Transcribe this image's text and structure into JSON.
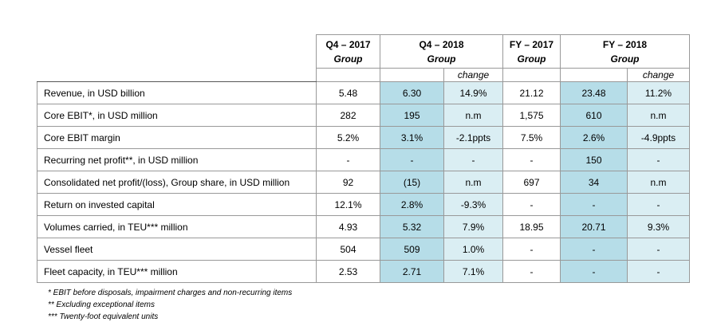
{
  "table": {
    "header": {
      "groups": [
        {
          "period": "Q4 – 2017",
          "sub": "Group",
          "span": 1
        },
        {
          "period": "Q4 – 2018",
          "sub": "Group",
          "span": 2,
          "change": "change"
        },
        {
          "period": "FY – 2017",
          "sub": "Group",
          "span": 1
        },
        {
          "period": "FY – 2018",
          "sub": "Group",
          "span": 2,
          "change": "change"
        }
      ]
    },
    "rows": [
      {
        "label": "Revenue, in USD billion",
        "cells": [
          "5.48",
          "6.30",
          "14.9%",
          "21.12",
          "23.48",
          "11.2%"
        ]
      },
      {
        "label": "Core EBIT*, in USD million",
        "cells": [
          "282",
          "195",
          "n.m",
          "1,575",
          "610",
          "n.m"
        ]
      },
      {
        "label": "Core EBIT margin",
        "cells": [
          "5.2%",
          "3.1%",
          "-2.1ppts",
          "7.5%",
          "2.6%",
          "-4.9ppts"
        ]
      },
      {
        "label": "Recurring net profit**, in USD million",
        "cells": [
          "-",
          "-",
          "-",
          "-",
          "150",
          "-"
        ]
      },
      {
        "label": "Consolidated net profit/(loss), Group share, in USD million",
        "cells": [
          "92",
          "(15)",
          "n.m",
          "697",
          "34",
          "n.m"
        ]
      },
      {
        "label": "Return on invested capital",
        "cells": [
          "12.1%",
          "2.8%",
          "-9.3%",
          "-",
          "-",
          "-"
        ]
      },
      {
        "label": "Volumes carried, in TEU*** million",
        "cells": [
          "4.93",
          "5.32",
          "7.9%",
          "18.95",
          "20.71",
          "9.3%"
        ]
      },
      {
        "label": "Vessel fleet",
        "cells": [
          "504",
          "509",
          "1.0%",
          "-",
          "-",
          "-"
        ]
      },
      {
        "label": "Fleet capacity, in TEU*** million",
        "cells": [
          "2.53",
          "2.71",
          "7.1%",
          "-",
          "-",
          "-"
        ]
      }
    ]
  },
  "footnotes": [
    "* EBIT before disposals, impairment charges and non-recurring items",
    "** Excluding exceptional items",
    "*** Twenty-foot equivalent units"
  ]
}
